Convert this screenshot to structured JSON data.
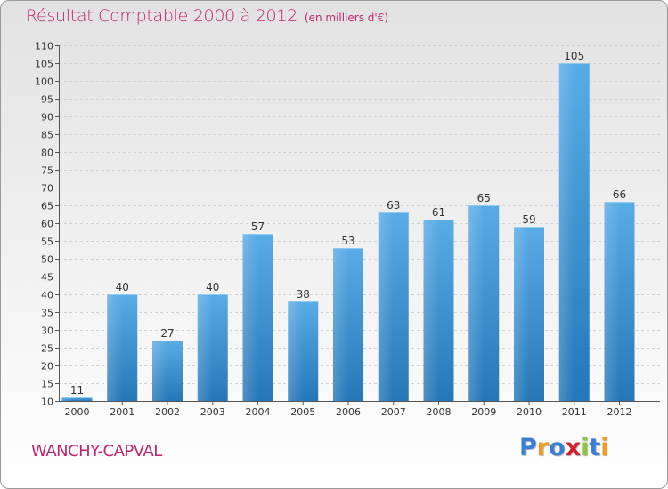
{
  "title": "Résultat Comptable 2000 à 2012",
  "subtitle": "(en milliers d'€)",
  "commune": "WANCHY-CAPVAL",
  "logo": {
    "text": "Proxiti",
    "letters": [
      {
        "char": "P",
        "color": "#3b7fd4"
      },
      {
        "char": "r",
        "color": "#f29b1d"
      },
      {
        "char": "o",
        "color": "#3b7fd4"
      },
      {
        "char": "x",
        "color": "#d2232a"
      },
      {
        "char": "i",
        "color": "#8cc63f"
      },
      {
        "char": "t",
        "color": "#3b7fd4"
      },
      {
        "char": "i",
        "color": "#f29b1d"
      }
    ]
  },
  "colors": {
    "title": "#c0256e",
    "bar_light": "#5aace6",
    "bar_dark": "#2577b8",
    "grid": "#cfcfcf"
  },
  "chart_data": {
    "type": "bar",
    "title": "Résultat Comptable 2000 à 2012",
    "subtitle": "(en milliers d'€)",
    "xlabel": "",
    "ylabel": "",
    "categories": [
      "2000",
      "2001",
      "2002",
      "2003",
      "2004",
      "2005",
      "2006",
      "2007",
      "2008",
      "2009",
      "2010",
      "2011",
      "2012"
    ],
    "values": [
      11,
      40,
      27,
      40,
      57,
      38,
      53,
      63,
      61,
      65,
      59,
      105,
      66
    ],
    "ylim": [
      10,
      110
    ],
    "yticks": [
      10,
      15,
      20,
      25,
      30,
      35,
      40,
      45,
      50,
      55,
      60,
      65,
      70,
      75,
      80,
      85,
      90,
      95,
      100,
      105,
      110
    ],
    "grid": "horizontal dashed",
    "legend": "none"
  }
}
